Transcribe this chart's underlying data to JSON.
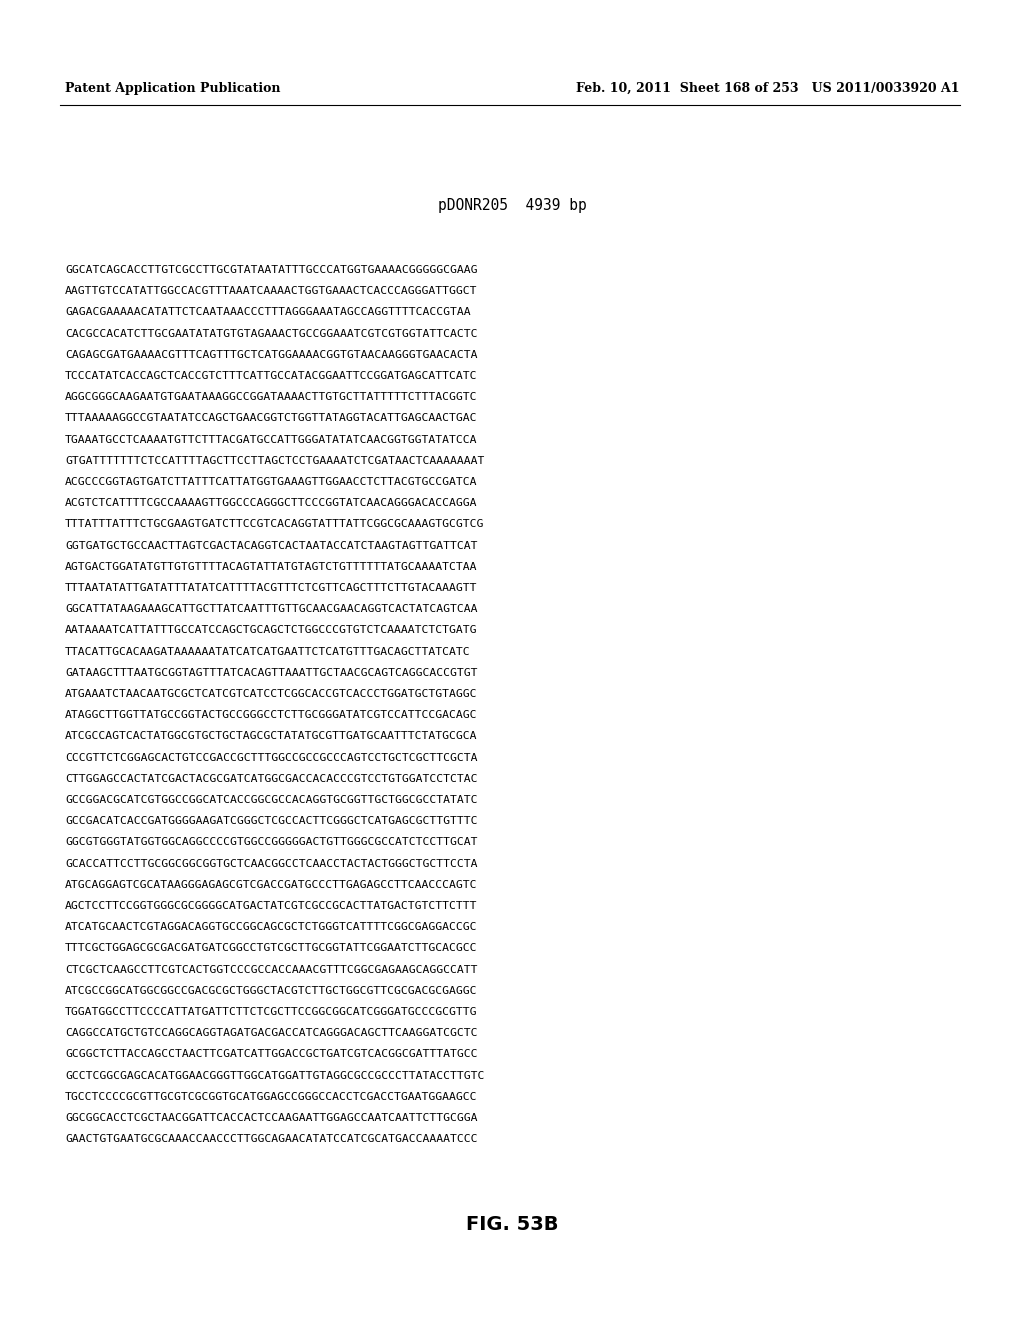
{
  "header_left": "Patent Application Publication",
  "header_right": "Feb. 10, 2011  Sheet 168 of 253   US 2011/0033920 A1",
  "title": "pDONR205  4939 bp",
  "figure_label": "FIG. 53B",
  "sequence_lines": [
    "GGCATCAGCACCTTGTCGCCTTGCGTATAATATTTGCCCATGGTGAAAACGGGGGCGAAG",
    "AAGTTGTCCATATTGGCCACGTTTAAATCAAAACTGGTGAAACTCACCCAGGGATTGGCT",
    "GAGACGAAAAACATATTCTCAATAAACCCTTTAGGGAAATAGCCAGGTTTTCACCGTAA",
    "CACGCCACATCTTGCGAATATATGTGTAGAAACTGCCGGAAATCGTCGTGGTATTCACTC",
    "CAGAGCGATGAAAACGTTTCAGTTTGCTCATGGAAAACGGTGTAACAAGGGTGAACACTA",
    "TCCCATATCACCAGCTCACCGTCTTTCATTGCCATACGGAATTCCGGATGAGCATTCATC",
    "AGGCGGGCAAGAATGTGAATAAAGGCCGGATAAAACTTGTGCTTATTTTTCTTTACGGTC",
    "TTTAAAAAGGCCGTAATATCCAGCTGAACGGTCTGGTTATAGGTACATTGAGCAACTGAC",
    "TGAAATGCCTCAAAATGTTCTTTACGATGCCATTGGGATATATCAACGGTGGTATATCCA",
    "GTGATTTTTTTCTCCATTTTAGCTTCCTTAGCTCCTGAAAATCTCGATAACTCAAAAAAAT",
    "ACGCCCGGTAGTGATCTTATTTCATTATGGTGAAAGTTGGAACCTCTTACGTGCCGATCA",
    "ACGTCTCATTTTCGCCAAAAGTTGGCCCAGGGCTTCCCGGTATCAACAGGGACACCAGGA",
    "TTTATTTATTTCTGCGAAGTGATCTTCCGTCACAGGTATTTATTCGGCGCAAAGTGCGTCG",
    "GGTGATGCTGCCAACTTAGTCGACTACAGGTCACTAATACCATCTAAGTAGTTGATTCAT",
    "AGTGACTGGATATGTTGTGTTTTACAGTATTATGTAGTCTGTTTTTTATGCAAAATCTAA",
    "TTTAATATATTGATATTTATATCATTTTACGTTTCTCGTTCAGCTTTCTTGTACAAAGTT",
    "GGCATTATAAGAAAGCATTGCTTATCAATTTGTTGCAACGAACAGGTCACTATCAGTCAA",
    "AATAAAATCATTATTTGCCATCCAGCTGCAGCTCTGGCCCGTGTCTCAAAATCTCTGATG",
    "TTACATTGCACAAGATAAAAAATATCATCATGAATTCTCATGTTTGACAGCTTATCATC",
    "GATAAGCTTTAATGCGGTAGTTTATCACAGTTAAATTGCTAACGCAGTCAGGCACCGTGT",
    "ATGAAATCTAACAATGCGCTCATCGTCATCCTCGGCACCGTCACCCTGGATGCTGTAGGC",
    "ATAGGCTTGGTTATGCCGGTACTGCCGGGCCTCTTGCGGGATATCGTCCATTCCGACAGC",
    "ATCGCCAGTCACTATGGCGTGCTGCTAGCGCTATATGCGTTGATGCAATTTCTATGCGCA",
    "CCCGTTCTCGGAGCACTGTCCGACCGCTTTGGCCGCCGCCCAGTCCTGCTCGCTTCGCTA",
    "CTTGGAGCCACTATCGACTACGCGATCATGGCGACCACACCCGTCCTGTGGATCCTCTAC",
    "GCCGGACGCATCGTGGCCGGCATCACCGGCGCCACAGGTGCGGTTGCTGGCGCCTATATC",
    "GCCGACATCACCGATGGGGAAGATCGGGCTCGCCACTTCGGGCTCATGAGCGCTTGTTTC",
    "GGCGTGGGTATGGTGGCAGGCCCCGTGGCCGGGGGACTGTTGGGCGCCATCTCCTTGCAT",
    "GCACCATTCCTTGCGGCGGCGGTGCTCAACGGCCTCAACCTACTACTGGGCTGCTTCCTA",
    "ATGCAGGAGTCGCATAAGGGAGAGCGTCGACCGATGCCCTTGAGAGCCTTCAACCCAGTC",
    "AGCTCCTTCCGGTGGGCGCGGGGCATGACTATCGTCGCCGCACTTATGACTGTCTTCTTT",
    "ATCATGCAACTCGTAGGACAGGTGCCGGCAGCGCTCTGGGTCATTTTCGGCGAGGACCGC",
    "TTTCGCTGGAGCGCGACGATGATCGGCCTGTCGCTTGCGGTATTCGGAATCTTGCACGCC",
    "CTCGCTCAAGCCTTCGTCACTGGTCCCGCCACCAAACGTTTCGGCGAGAAGCAGGCCATT",
    "ATCGCCGGCATGGCGGCCGACGCGCTGGGCTACGTCTTGCTGGCGTTCGCGACGCGAGGC",
    "TGGATGGCCTTCCCCATTATGATTCTTCTCGCTTCCGGCGGCATCGGGATGCCCGCGTTG",
    "CAGGCCATGCTGTCCAGGCAGGTAGATGACGACCATCAGGGACAGCTTCAAGGATCGCTC",
    "GCGGCTCTTACCAGCCTAACTTCGATCATTGGACCGCTGATCGTCACGGCGATTTATGCC",
    "GCCTCGGCGAGCACATGGAACGGGTTGGCATGGATTGTAGGCGCCGCCCTTATACCTTGTC",
    "TGCCTCCCCGCGTTGCGTCGCGGTGCATGGAGCCGGGCCACCTCGACCTGAATGGAAGCC",
    "GGCGGCACCTCGCTAACGGATTCACCACTCCAAGAATTGGAGCCAATCAATTCTTGCGGA",
    "GAACTGTGAATGCGCAAACCAACCCTTGGCAGAACATATCCATCGCATGACCAAAATCCC"
  ],
  "background_color": "#ffffff",
  "text_color": "#000000",
  "header_fontsize": 9.0,
  "title_fontsize": 10.5,
  "seq_fontsize": 8.2,
  "figure_label_fontsize": 14
}
